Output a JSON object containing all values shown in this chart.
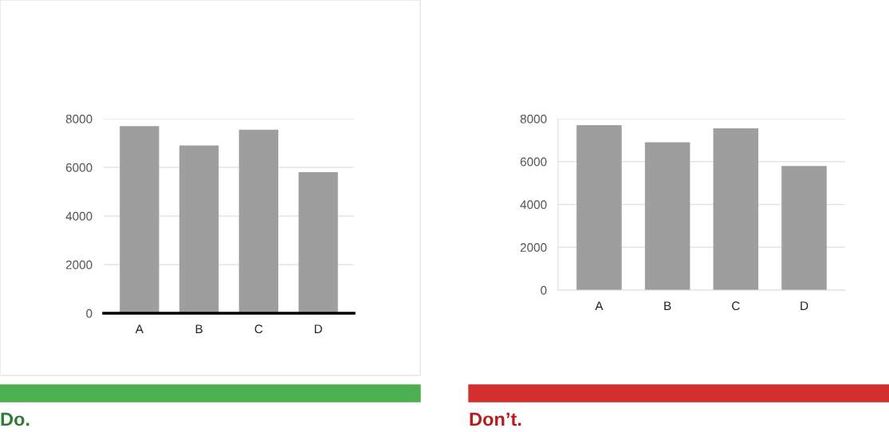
{
  "chart_data": [
    {
      "type": "bar",
      "categories": [
        "A",
        "B",
        "C",
        "D"
      ],
      "values": [
        7700,
        6900,
        7550,
        5800
      ],
      "color": "#9e9e9e",
      "ylim": [
        0,
        8000
      ],
      "yticks": [
        0,
        2000,
        4000,
        6000,
        8000
      ],
      "grid": "y",
      "annotations": [
        "Do."
      ]
    },
    {
      "type": "bar",
      "categories": [
        "A",
        "B",
        "C",
        "D"
      ],
      "values": [
        7700,
        6900,
        7550,
        5800
      ],
      "color": "#9e9e9e",
      "ylim": [
        0,
        8000
      ],
      "yticks": [
        0,
        2000,
        4000,
        6000,
        8000
      ],
      "grid": "y",
      "annotations": [
        "Don’t."
      ]
    }
  ]
}
